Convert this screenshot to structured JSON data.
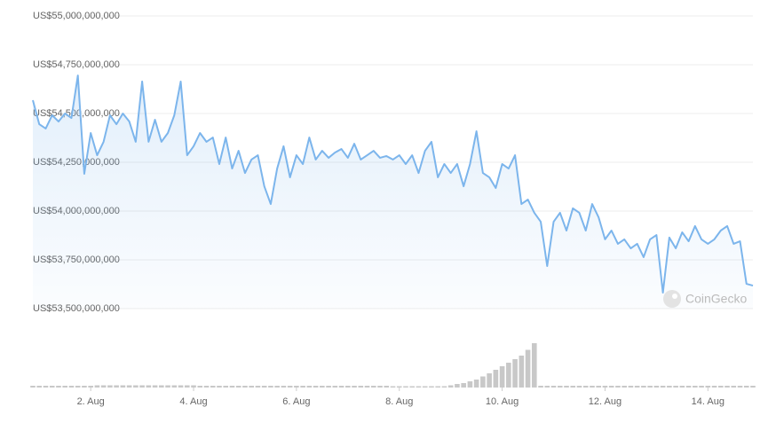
{
  "chart_data": {
    "type": "area-line",
    "watermark": "CoinGecko",
    "xlim": [
      0.875,
      14.875
    ],
    "xticks": [
      {
        "value": 2,
        "label": "2. Aug"
      },
      {
        "value": 4,
        "label": "4. Aug"
      },
      {
        "value": 6,
        "label": "6. Aug"
      },
      {
        "value": 8,
        "label": "8. Aug"
      },
      {
        "value": 10,
        "label": "10. Aug"
      },
      {
        "value": 12,
        "label": "12. Aug"
      },
      {
        "value": 14,
        "label": "14. Aug"
      }
    ],
    "ylim": [
      53500000000,
      55000000000
    ],
    "yticks": [
      {
        "value": 53500000000,
        "label": "US$53,500,000,000"
      },
      {
        "value": 53750000000,
        "label": "US$53,750,000,000"
      },
      {
        "value": 54000000000,
        "label": "US$54,000,000,000"
      },
      {
        "value": 54250000000,
        "label": "US$54,250,000,000"
      },
      {
        "value": 54500000000,
        "label": "US$54,500,000,000"
      },
      {
        "value": 54750000000,
        "label": "US$54,750,000,000"
      },
      {
        "value": 55000000000,
        "label": "US$55,000,000,000"
      }
    ],
    "grid": true,
    "color": "#7cb5ec",
    "x": [
      0.875,
      1,
      1.125,
      1.25,
      1.375,
      1.5,
      1.625,
      1.75,
      1.875,
      2,
      2.125,
      2.25,
      2.375,
      2.5,
      2.625,
      2.75,
      2.875,
      3,
      3.125,
      3.25,
      3.375,
      3.5,
      3.625,
      3.75,
      3.875,
      4,
      4.125,
      4.25,
      4.375,
      4.5,
      4.625,
      4.75,
      4.875,
      5,
      5.125,
      5.25,
      5.375,
      5.5,
      5.625,
      5.75,
      5.875,
      6,
      6.125,
      6.25,
      6.375,
      6.5,
      6.625,
      6.75,
      6.875,
      7,
      7.125,
      7.25,
      7.375,
      7.5,
      7.625,
      7.75,
      7.875,
      8,
      8.125,
      8.25,
      8.375,
      8.5,
      8.625,
      8.75,
      8.875,
      9,
      9.125,
      9.25,
      9.375,
      9.5,
      9.625,
      9.75,
      9.875,
      10,
      10.125,
      10.25,
      10.375,
      10.5,
      10.625,
      10.75,
      10.875,
      11,
      11.125,
      11.25,
      11.375,
      11.5,
      11.625,
      11.75,
      11.875,
      12,
      12.125,
      12.25,
      12.375,
      12.5,
      12.625,
      12.75,
      12.875,
      13,
      13.125,
      13.25,
      13.375,
      13.5,
      13.625,
      13.75,
      13.875,
      14,
      14.125,
      14.25,
      14.375,
      14.5,
      14.625,
      14.75,
      14.875
    ],
    "values": [
      54568000000,
      54445000000,
      54423000000,
      54491000000,
      54459000000,
      54500000000,
      54477000000,
      54695000000,
      54191000000,
      54400000000,
      54286000000,
      54355000000,
      54491000000,
      54445000000,
      54500000000,
      54459000000,
      54355000000,
      54664000000,
      54355000000,
      54468000000,
      54355000000,
      54400000000,
      54491000000,
      54664000000,
      54286000000,
      54332000000,
      54400000000,
      54355000000,
      54377000000,
      54241000000,
      54377000000,
      54218000000,
      54309000000,
      54195000000,
      54264000000,
      54286000000,
      54127000000,
      54036000000,
      54218000000,
      54332000000,
      54173000000,
      54286000000,
      54241000000,
      54377000000,
      54264000000,
      54309000000,
      54273000000,
      54300000000,
      54318000000,
      54273000000,
      54345000000,
      54264000000,
      54286000000,
      54309000000,
      54273000000,
      54282000000,
      54264000000,
      54286000000,
      54241000000,
      54286000000,
      54195000000,
      54309000000,
      54355000000,
      54173000000,
      54241000000,
      54195000000,
      54241000000,
      54127000000,
      54241000000,
      54409000000,
      54195000000,
      54173000000,
      54118000000,
      54241000000,
      54218000000,
      54286000000,
      54036000000,
      54059000000,
      53991000000,
      53945000000,
      53718000000,
      53945000000,
      53991000000,
      53900000000,
      54014000000,
      53991000000,
      53900000000,
      54036000000,
      53968000000,
      53855000000,
      53900000000,
      53832000000,
      53855000000,
      53809000000,
      53832000000,
      53764000000,
      53855000000,
      53877000000,
      53582000000,
      53864000000,
      53809000000,
      53891000000,
      53845000000,
      53923000000,
      53855000000,
      53832000000,
      53855000000,
      53900000000,
      53923000000,
      53832000000,
      53845000000,
      53627000000,
      53618000000
    ],
    "volume": {
      "color": "#c8c8c8",
      "ylim": [
        0,
        100
      ],
      "values": [
        4,
        4,
        4,
        4,
        4,
        4,
        4,
        4,
        4,
        4,
        5,
        5,
        5,
        5,
        5,
        5,
        5,
        5,
        5,
        5,
        5,
        5,
        5,
        5,
        5,
        5,
        4,
        4,
        4,
        4,
        4,
        4,
        4,
        4,
        4,
        4,
        4,
        4,
        4,
        4,
        4,
        4,
        4,
        4,
        4,
        4,
        4,
        4,
        4,
        4,
        4,
        4,
        4,
        4,
        4,
        4,
        3,
        3,
        3,
        3,
        3,
        3,
        3,
        3,
        3,
        5,
        8,
        10,
        14,
        18,
        25,
        32,
        40,
        48,
        56,
        64,
        72,
        85,
        100,
        4,
        4,
        4,
        4,
        4,
        4,
        4,
        4,
        4,
        4,
        4,
        4,
        4,
        4,
        4,
        4,
        4,
        4,
        4,
        4,
        4,
        4,
        4,
        4,
        4,
        4,
        4,
        4,
        4,
        4,
        4,
        4,
        4,
        4
      ]
    }
  }
}
